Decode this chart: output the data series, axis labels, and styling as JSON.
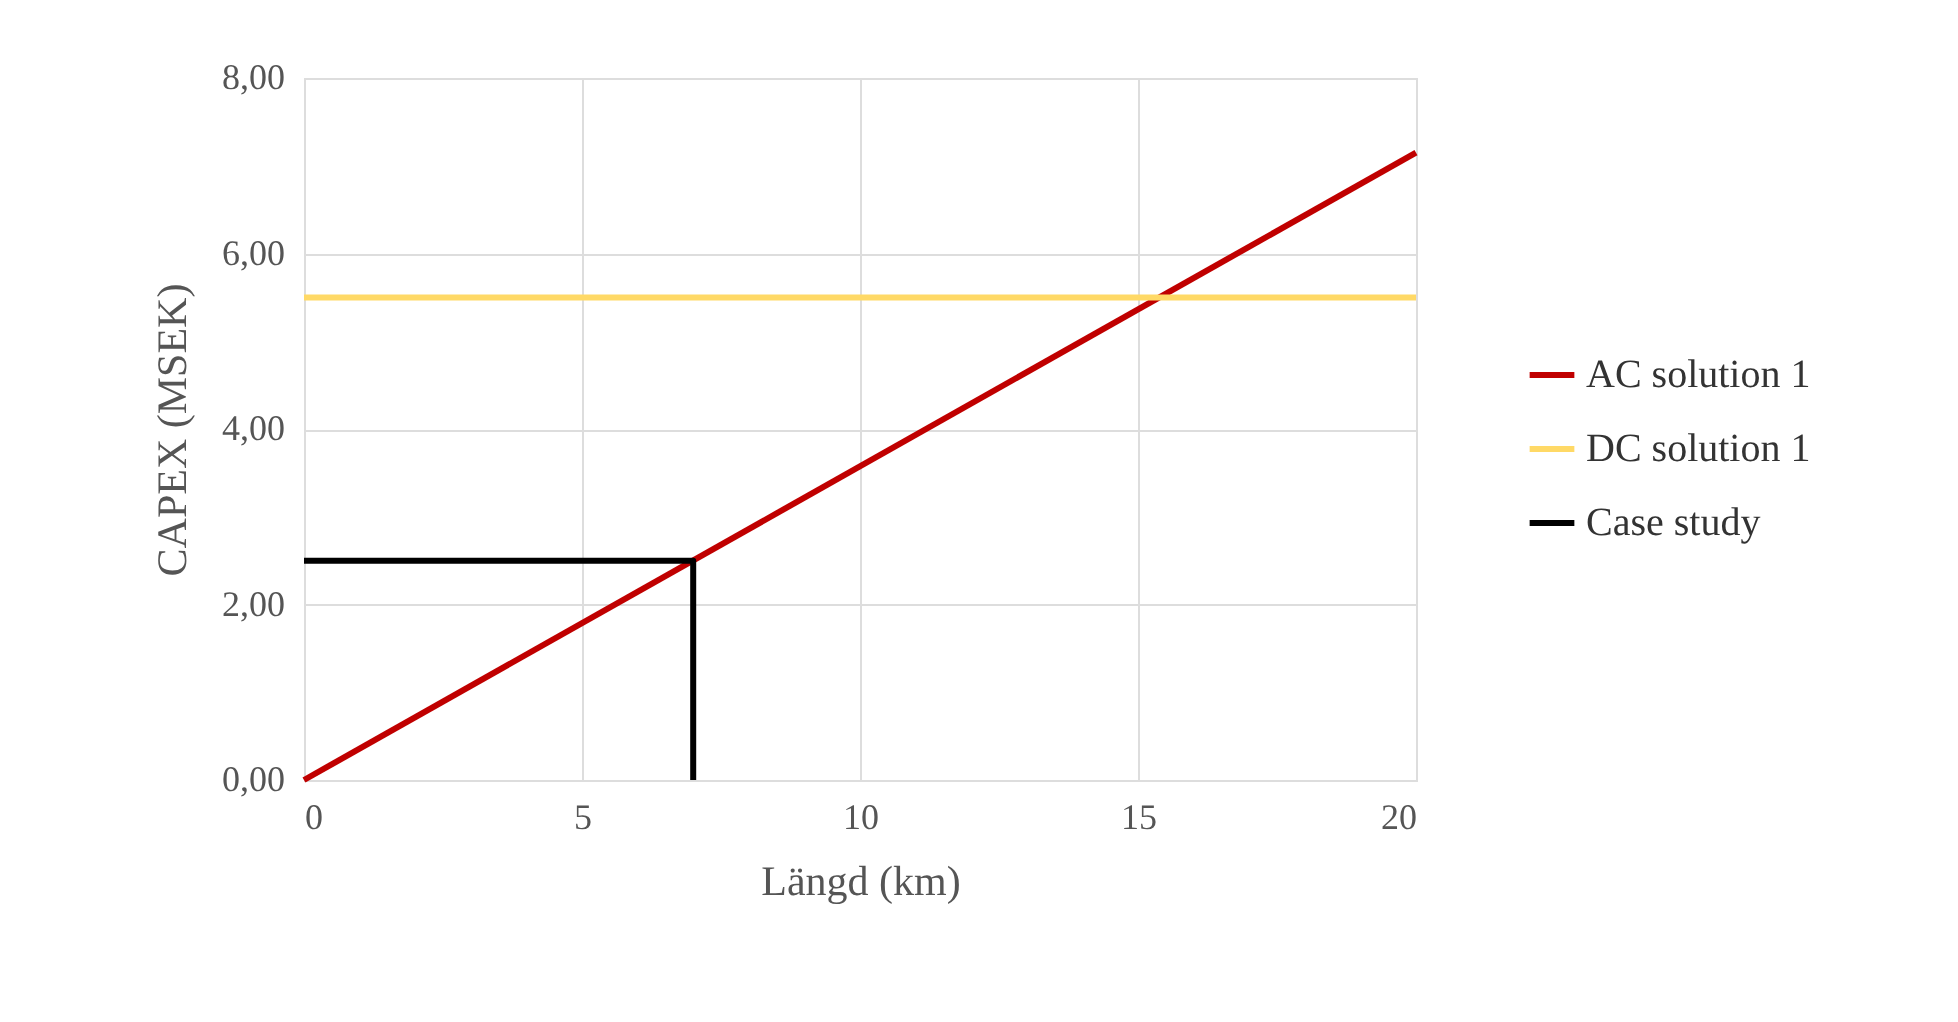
{
  "chart_data": {
    "type": "line",
    "xlabel": "Längd (km)",
    "ylabel": "CAPEX (MSEK)",
    "series": [
      {
        "name": "AC solution 1",
        "color": "#c00000",
        "x": [
          0,
          20
        ],
        "values": [
          0,
          7.15
        ]
      },
      {
        "name": "DC solution 1",
        "color": "#ffd966",
        "x": [
          0,
          20
        ],
        "values": [
          5.5,
          5.5
        ]
      },
      {
        "name": "Case study",
        "color": "#000000",
        "x": [
          0,
          7,
          7
        ],
        "values": [
          2.5,
          2.5,
          0
        ]
      }
    ],
    "xlim": [
      0,
      20
    ],
    "xticks": [
      0,
      5,
      10,
      15,
      20
    ],
    "ylim": [
      0,
      8
    ],
    "yticks": [
      {
        "value": 0,
        "label": "0,00"
      },
      {
        "value": 2,
        "label": "2,00"
      },
      {
        "value": 4,
        "label": "4,00"
      },
      {
        "value": 6,
        "label": "6,00"
      },
      {
        "value": 8,
        "label": "8,00"
      }
    ],
    "grid": true,
    "legend": "right",
    "marker": "none",
    "line_style": "solid"
  }
}
